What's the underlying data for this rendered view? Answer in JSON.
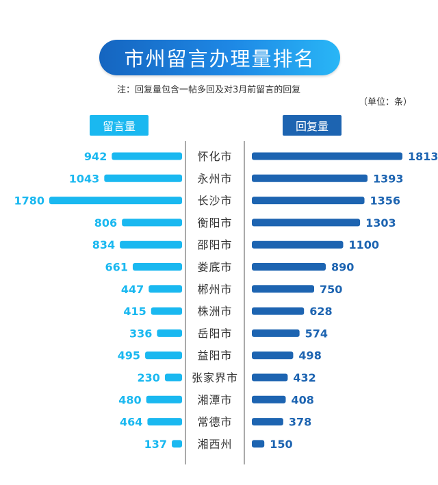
{
  "title": "市州留言办理量排名",
  "note": "注：回复量包含一帖多回及对3月前留言的回复",
  "unit": "（单位：条）",
  "colors": {
    "left_bar": "#1ab8f0",
    "right_bar": "#1d64b1",
    "left_text": "#1ab8f0",
    "right_text": "#1d64b1",
    "city_text": "#333333",
    "divider": "#555555"
  },
  "chart_data": {
    "type": "bar",
    "categories": [
      "怀化市",
      "永州市",
      "长沙市",
      "衡阳市",
      "邵阳市",
      "娄底市",
      "郴州市",
      "株洲市",
      "岳阳市",
      "益阳市",
      "张家界市",
      "湘潭市",
      "常德市",
      "湘西州"
    ],
    "series": [
      {
        "name": "留言量",
        "values": [
          942,
          1043,
          1780,
          806,
          834,
          661,
          447,
          415,
          336,
          495,
          230,
          480,
          464,
          137
        ]
      },
      {
        "name": "回复量",
        "values": [
          1813,
          1393,
          1356,
          1303,
          1100,
          890,
          750,
          628,
          574,
          498,
          432,
          408,
          378,
          150
        ]
      }
    ],
    "title": "市州留言办理量排名",
    "xlabel": "",
    "ylabel": ""
  }
}
